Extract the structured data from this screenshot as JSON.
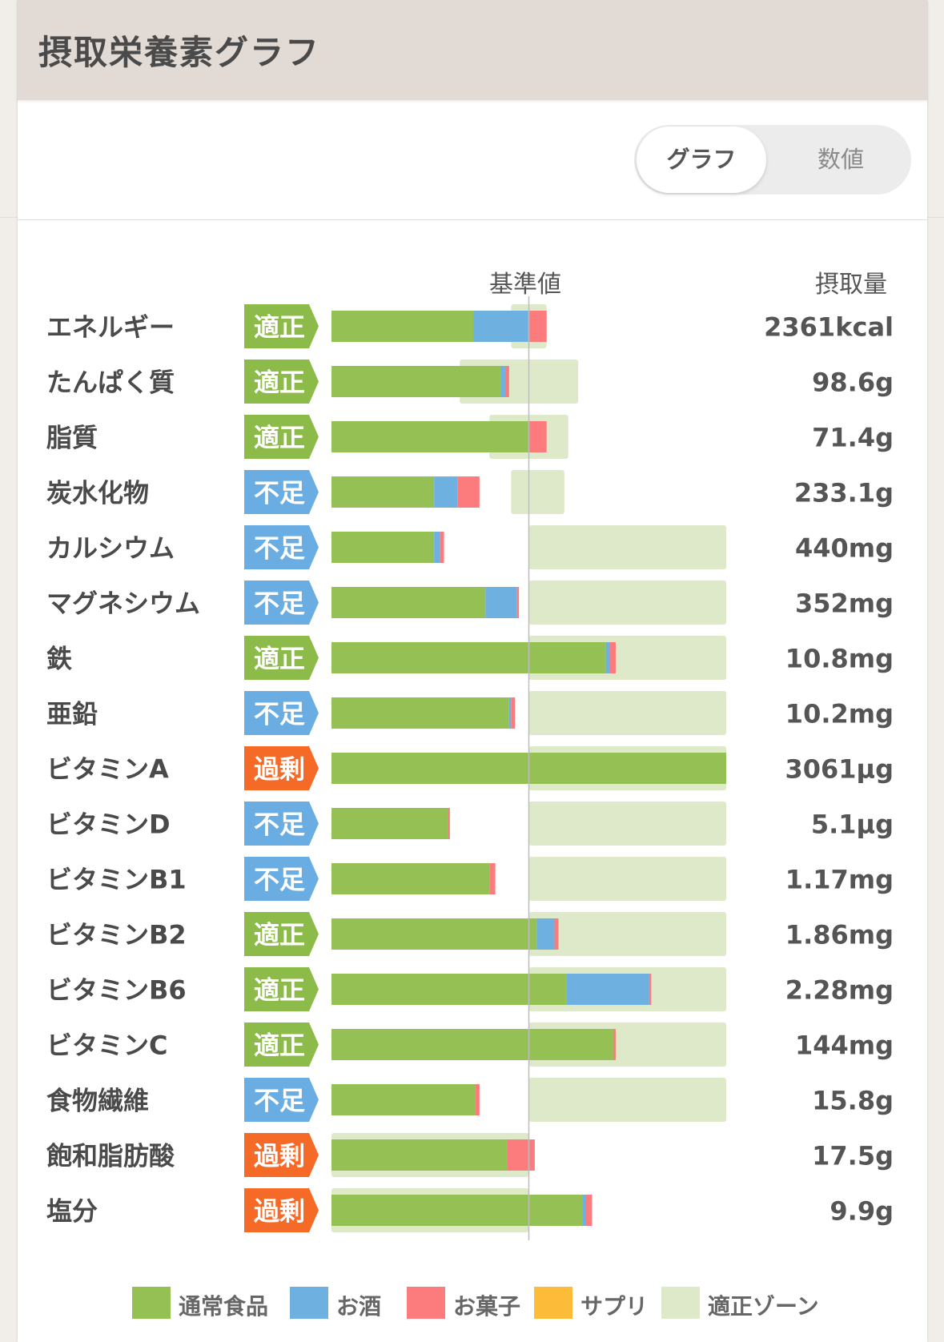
{
  "card": {
    "title": "摂取栄養素グラフ"
  },
  "toggle": {
    "graph_label": "グラフ",
    "values_label": "数値"
  },
  "columns": {
    "reference_label": "基準値",
    "intake_label": "摂取量"
  },
  "colors": {
    "normal_food": "#95c053",
    "alcohol": "#6eb0df",
    "snacks": "#fc7c7e",
    "supplements": "#fcbc3a",
    "appropriate_zone": "#dde9c9",
    "status_ok": "#8dbb4a",
    "status_low": "#6aade2",
    "status_high": "#f66a27"
  },
  "legend": [
    {
      "key": "normal_food",
      "label": "通常食品"
    },
    {
      "key": "alcohol",
      "label": "お酒"
    },
    {
      "key": "snacks",
      "label": "お菓子"
    },
    {
      "key": "supplements",
      "label": "サプリ"
    },
    {
      "key": "appropriate_zone",
      "label": "適正ゾーン"
    }
  ],
  "chart_data": {
    "type": "bar",
    "orientation": "horizontal",
    "stacked": true,
    "unit": "% of reference value",
    "reference_value": 100,
    "xlim": [
      0,
      200
    ],
    "grid": false,
    "legend_position": "bottom",
    "categories": [
      "エネルギー",
      "たんぱく質",
      "脂質",
      "炭水化物",
      "カルシウム",
      "マグネシウム",
      "鉄",
      "亜鉛",
      "ビタミンA",
      "ビタミンD",
      "ビタミンB1",
      "ビタミンB2",
      "ビタミンB6",
      "ビタミンC",
      "食物繊維",
      "飽和脂肪酸",
      "塩分"
    ],
    "status": [
      "適正",
      "適正",
      "適正",
      "不足",
      "不足",
      "不足",
      "適正",
      "不足",
      "過剰",
      "不足",
      "不足",
      "適正",
      "適正",
      "適正",
      "不足",
      "過剰",
      "過剰"
    ],
    "intake": [
      "2361kcal",
      "98.6g",
      "71.4g",
      "233.1g",
      "440mg",
      "352mg",
      "10.8mg",
      "10.2mg",
      "3061μg",
      "5.1μg",
      "1.17mg",
      "1.86mg",
      "2.28mg",
      "144mg",
      "15.8g",
      "17.5g",
      "9.9g"
    ],
    "series": [
      {
        "name": "通常食品",
        "values": [
          72,
          86,
          100,
          52,
          52,
          78,
          139,
          90,
          200,
          59,
          80,
          104,
          119,
          143,
          73,
          89,
          127
        ]
      },
      {
        "name": "お酒",
        "values": [
          28,
          2,
          0,
          12,
          3,
          16,
          2,
          1,
          0,
          0,
          0,
          9,
          42,
          0,
          0,
          0,
          2
        ]
      },
      {
        "name": "お菓子",
        "values": [
          9,
          2,
          9,
          11,
          2,
          1,
          3,
          2,
          0,
          1,
          3,
          2,
          1,
          1,
          2,
          14,
          3
        ]
      },
      {
        "name": "サプリ",
        "values": [
          0,
          0,
          0,
          0,
          0,
          0,
          0,
          0,
          0,
          0,
          0,
          0,
          0,
          0,
          0,
          0,
          0
        ]
      }
    ],
    "appropriate_zone": [
      [
        91,
        109
      ],
      [
        65,
        125
      ],
      [
        80,
        120
      ],
      [
        91,
        118
      ],
      [
        100,
        200
      ],
      [
        100,
        200
      ],
      [
        100,
        200
      ],
      [
        100,
        200
      ],
      [
        100,
        200
      ],
      [
        100,
        200
      ],
      [
        100,
        200
      ],
      [
        100,
        200
      ],
      [
        100,
        200
      ],
      [
        100,
        200
      ],
      [
        100,
        200
      ],
      [
        0,
        100
      ],
      [
        0,
        100
      ]
    ]
  }
}
